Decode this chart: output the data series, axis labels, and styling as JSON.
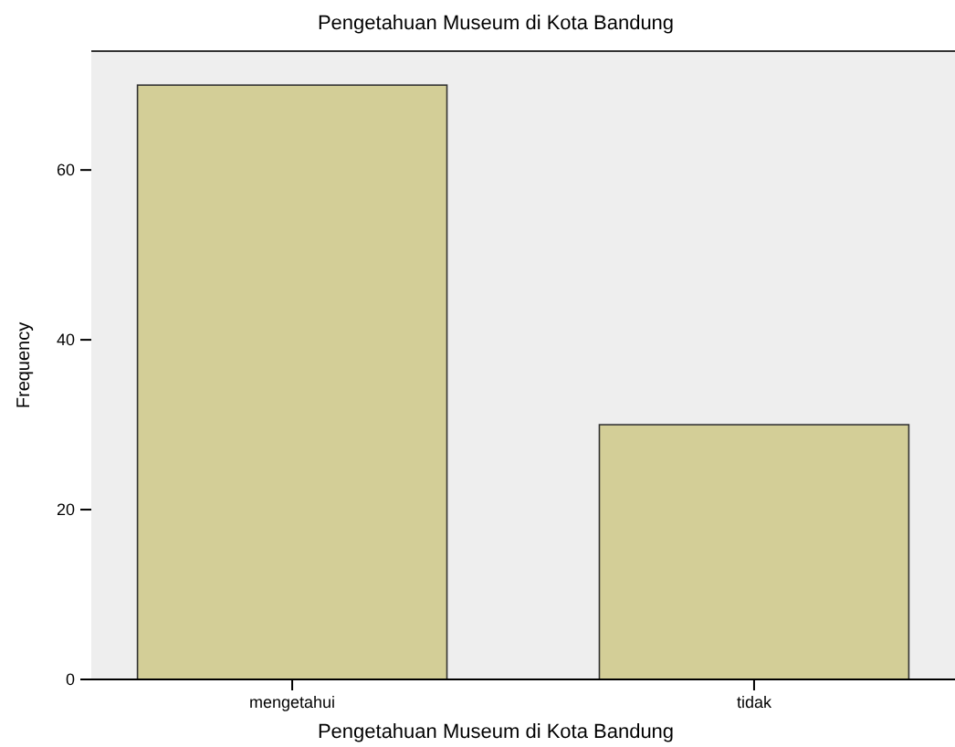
{
  "chart_data": {
    "type": "bar",
    "title": "Pengetahuan Museum di Kota Bandung",
    "xlabel": "Pengetahuan Museum di Kota Bandung",
    "ylabel": "Frequency",
    "categories": [
      "mengetahui",
      "tidak"
    ],
    "values": [
      70,
      30
    ],
    "color": "#d3ce97",
    "ylim": [
      0,
      74
    ],
    "yticks": [
      0,
      20,
      40,
      60
    ]
  }
}
